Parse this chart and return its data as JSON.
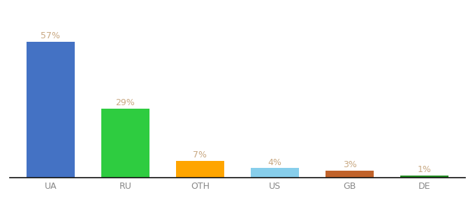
{
  "categories": [
    "UA",
    "RU",
    "OTH",
    "US",
    "GB",
    "DE"
  ],
  "values": [
    57,
    29,
    7,
    4,
    3,
    1
  ],
  "labels": [
    "57%",
    "29%",
    "7%",
    "4%",
    "3%",
    "1%"
  ],
  "bar_colors": [
    "#4472C4",
    "#2ECC40",
    "#FFA500",
    "#87CEEB",
    "#C0622A",
    "#228B22"
  ],
  "background_color": "#ffffff",
  "ylim": [
    0,
    63
  ],
  "label_fontsize": 9,
  "tick_fontsize": 9,
  "label_color": "#C8A882",
  "tick_color": "#888888",
  "bar_width": 0.65,
  "bottom_spine_color": "#111111"
}
